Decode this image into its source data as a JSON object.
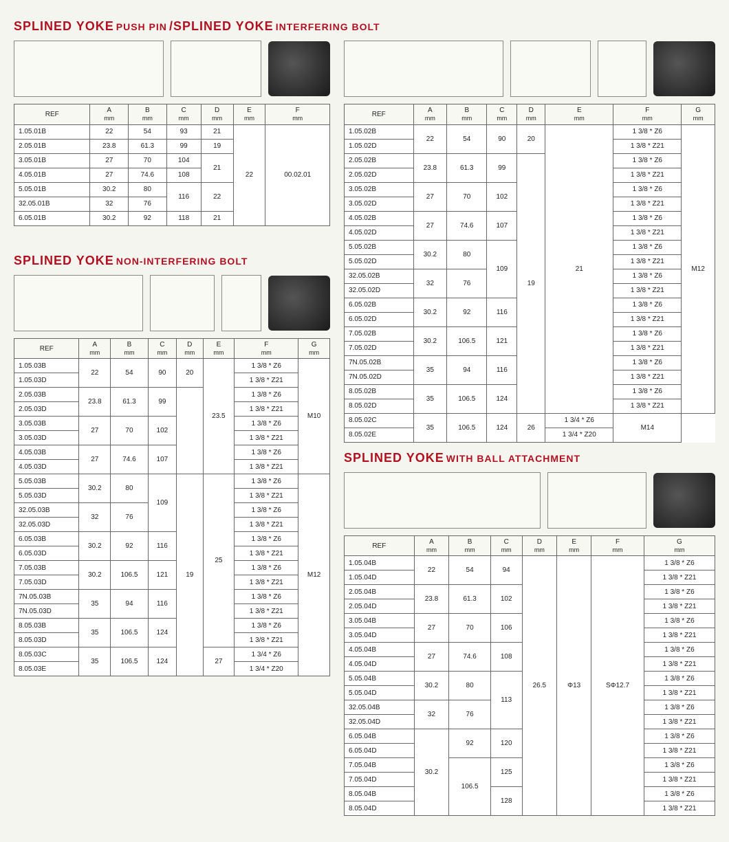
{
  "colors": {
    "title": "#b01020",
    "border": "#666",
    "bg": "#f5f5f0"
  },
  "headers7": [
    "REF",
    "A",
    "B",
    "C",
    "D",
    "E",
    "F",
    "G"
  ],
  "unit": "mm",
  "section1": {
    "title_main": "SPLINED YOKE",
    "title_sub1": "PUSH PIN",
    "title_sub2": "/SPLINED YOKE",
    "title_sub3": "INTERFERING BOLT"
  },
  "table1": {
    "headers": [
      "REF",
      "A",
      "B",
      "C",
      "D",
      "E",
      "F"
    ]
  },
  "t1r": [
    [
      "1.05.01B",
      "22",
      "54",
      "93",
      "21"
    ],
    [
      "2.05.01B",
      "23.8",
      "61.3",
      "99",
      "19"
    ],
    [
      "3.05.01B",
      "27",
      "70",
      "104"
    ],
    [
      "4.05.01B",
      "27",
      "74.6",
      "108"
    ],
    [
      "5.05.01B",
      "30.2",
      "80"
    ],
    [
      "32.05.01B",
      "32",
      "76"
    ],
    [
      "6.05.01B",
      "30.2",
      "92",
      "118",
      "21"
    ]
  ],
  "t1m": {
    "d34": "21",
    "c56": "116",
    "d56": "22",
    "e": "22",
    "f": "00.02.01"
  },
  "section2": {
    "title_main": "SPLINED YOKE",
    "title_sub": "NON-INTERFERING BOLT"
  },
  "t3_d14": "20",
  "t3_c56": "99",
  "t3_c78": "102",
  "t3_c90": "107",
  "t3_e18": "23.5",
  "t3_g18": "M10",
  "t3_c1112": "109",
  "t3_d916": "19",
  "t3_e916": "25",
  "t3_g916": "M12",
  "t3_c1516": "116",
  "t3_c1718": "121",
  "t3_c1920": "116",
  "t3_c2122": "124",
  "t3_c2324": "124",
  "t3_e2324": "27",
  "t3r": [
    [
      "1.05.03B",
      "22",
      "54",
      "90",
      "1 3/8 * Z6"
    ],
    [
      "1.05.03D",
      "",
      "",
      "",
      "1 3/8 * Z21"
    ],
    [
      "2.05.03B",
      "23.8",
      "61.3",
      "",
      "1 3/8 * Z6"
    ],
    [
      "2.05.03D",
      "",
      "",
      "",
      "1 3/8 * Z21"
    ],
    [
      "3.05.03B",
      "27",
      "70",
      "",
      "1 3/8 * Z6"
    ],
    [
      "3.05.03D",
      "",
      "",
      "",
      "1 3/8 * Z21"
    ],
    [
      "4.05.03B",
      "27",
      "74.6",
      "",
      "1 3/8 * Z6"
    ],
    [
      "4.05.03D",
      "",
      "",
      "",
      "1 3/8 * Z21"
    ],
    [
      "5.05.03B",
      "30.2",
      "80",
      "",
      "1 3/8 * Z6"
    ],
    [
      "5.05.03D",
      "",
      "",
      "",
      "1 3/8 * Z21"
    ],
    [
      "32.05.03B",
      "32",
      "76",
      "",
      "1 3/8 * Z6"
    ],
    [
      "32.05.03D",
      "",
      "",
      "",
      "1 3/8 * Z21"
    ],
    [
      "6.05.03B",
      "30.2",
      "92",
      "",
      "1 3/8 * Z6"
    ],
    [
      "6.05.03D",
      "",
      "",
      "",
      "1 3/8 * Z21"
    ],
    [
      "7.05.03B",
      "30.2",
      "106.5",
      "",
      "1 3/8 * Z6"
    ],
    [
      "7.05.03D",
      "",
      "",
      "",
      "1 3/8 * Z21"
    ],
    [
      "7N.05.03B",
      "35",
      "94",
      "",
      "1 3/8 * Z6"
    ],
    [
      "7N.05.03D",
      "",
      "",
      "",
      "1 3/8 * Z21"
    ],
    [
      "8.05.03B",
      "35",
      "106.5",
      "",
      "1 3/8 * Z6"
    ],
    [
      "8.05.03D",
      "",
      "",
      "",
      "1 3/8 * Z21"
    ],
    [
      "8.05.03C",
      "35",
      "106.5",
      "",
      "1 3/4 * Z6"
    ],
    [
      "8.05.03E",
      "",
      "",
      "",
      "1 3/4 * Z20"
    ]
  ],
  "t2_c12": "90",
  "t2_d12": "20",
  "t2_c34": "99",
  "t2_c56": "102",
  "t2_c78": "107",
  "t2_c1112": "109",
  "t2_d316": "19",
  "t2_e120": "21",
  "t2_g120": "M12",
  "t2_c1516": "116",
  "t2_c1718": "121",
  "t2_c1920": "116",
  "t2_c2122": "124",
  "t2_c2324": "124",
  "t2_e2324": "26",
  "t2_g2324": "M14",
  "t2r": [
    [
      "1.05.02B",
      "22",
      "54",
      "1 3/8 * Z6"
    ],
    [
      "1.05.02D",
      "",
      "",
      "1 3/8 * Z21"
    ],
    [
      "2.05.02B",
      "23.8",
      "61.3",
      "1 3/8 * Z6"
    ],
    [
      "2.05.02D",
      "",
      "",
      "1 3/8 * Z21"
    ],
    [
      "3.05.02B",
      "27",
      "70",
      "1 3/8 * Z6"
    ],
    [
      "3.05.02D",
      "",
      "",
      "1 3/8 * Z21"
    ],
    [
      "4.05.02B",
      "27",
      "74.6",
      "1 3/8 * Z6"
    ],
    [
      "4.05.02D",
      "",
      "",
      "1 3/8 * Z21"
    ],
    [
      "5.05.02B",
      "30.2",
      "80",
      "1 3/8 * Z6"
    ],
    [
      "5.05.02D",
      "",
      "",
      "1 3/8 * Z21"
    ],
    [
      "32.05.02B",
      "32",
      "76",
      "1 3/8 * Z6"
    ],
    [
      "32.05.02D",
      "",
      "",
      "1 3/8 * Z21"
    ],
    [
      "6.05.02B",
      "30.2",
      "92",
      "1 3/8 * Z6"
    ],
    [
      "6.05.02D",
      "",
      "",
      "1 3/8 * Z21"
    ],
    [
      "7.05.02B",
      "30.2",
      "106.5",
      "1 3/8 * Z6"
    ],
    [
      "7.05.02D",
      "",
      "",
      "1 3/8 * Z21"
    ],
    [
      "7N.05.02B",
      "35",
      "94",
      "1 3/8 * Z6"
    ],
    [
      "7N.05.02D",
      "",
      "",
      "1 3/8 * Z21"
    ],
    [
      "8.05.02B",
      "35",
      "106.5",
      "1 3/8 * Z6"
    ],
    [
      "8.05.02D",
      "",
      "",
      "1 3/8 * Z21"
    ],
    [
      "8.05.02C",
      "35",
      "106.5",
      "1 3/4 * Z6"
    ],
    [
      "8.05.02E",
      "",
      "",
      "1 3/4 * Z20"
    ]
  ],
  "section4": {
    "title_main": "SPLINED YOKE",
    "title_sub": "WITH BALL ATTACHMENT"
  },
  "t4_c12": "94",
  "t4_c34": "102",
  "t4_c56": "106",
  "t4_c78": "108",
  "t4_c1112": "113",
  "t4_c1516": "120",
  "t4_c1718": "125",
  "t4_c1920": "128",
  "t4_d": "26.5",
  "t4_e": "Φ13",
  "t4_f": "SΦ12.7",
  "t4r": [
    [
      "1.05.04B",
      "22",
      "54",
      "1 3/8 * Z6"
    ],
    [
      "1.05.04D",
      "",
      "",
      "1 3/8 * Z21"
    ],
    [
      "2.05.04B",
      "23.8",
      "61.3",
      "1 3/8 * Z6"
    ],
    [
      "2.05.04D",
      "",
      "",
      "1 3/8 * Z21"
    ],
    [
      "3.05.04B",
      "27",
      "70",
      "1 3/8 * Z6"
    ],
    [
      "3.05.04D",
      "",
      "",
      "1 3/8 * Z21"
    ],
    [
      "4.05.04B",
      "27",
      "74.6",
      "1 3/8 * Z6"
    ],
    [
      "4.05.04D",
      "",
      "",
      "1 3/8 * Z21"
    ],
    [
      "5.05.04B",
      "30.2",
      "80",
      "1 3/8 * Z6"
    ],
    [
      "5.05.04D",
      "",
      "",
      "1 3/8 * Z21"
    ],
    [
      "32.05.04B",
      "32",
      "76",
      "1 3/8 * Z6"
    ],
    [
      "32.05.04D",
      "",
      "",
      "1 3/8 * Z21"
    ],
    [
      "6.05.04B",
      "",
      "92",
      "1 3/8 * Z6"
    ],
    [
      "6.05.04D",
      "",
      "",
      "1 3/8 * Z21"
    ],
    [
      "7.05.04B",
      "",
      "",
      "1 3/8 * Z6"
    ],
    [
      "7.05.04D",
      "",
      "",
      "1 3/8 * Z21"
    ],
    [
      "8.05.04B",
      "",
      "",
      "1 3/8 * Z6"
    ],
    [
      "8.05.04D",
      "",
      "",
      "1 3/8 * Z21"
    ]
  ],
  "t4_a1320": "30.2",
  "t4_b1720": "106.5"
}
